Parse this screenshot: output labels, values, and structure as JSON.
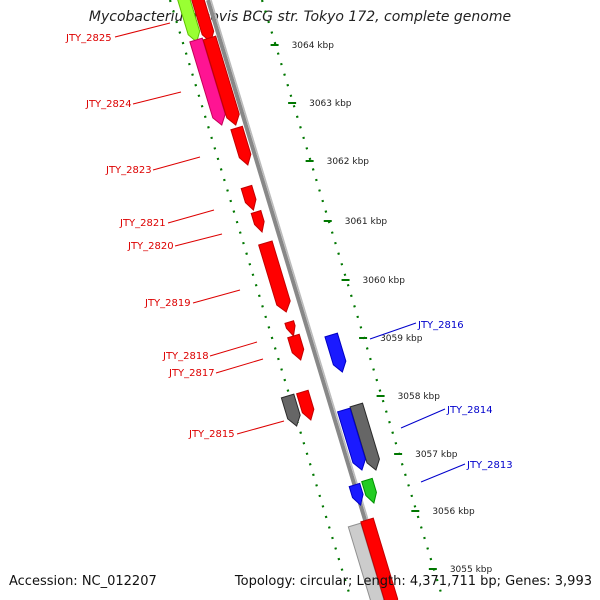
{
  "title": "Mycobacterium bovis BCG str. Tokyo 172, complete genome",
  "footer": {
    "accession": "Accession: NC_012207",
    "summary": "Topology: circular; Length: 4,371,711 bp; Genes: 3,993"
  },
  "colors": {
    "gene_red": "#ff0000",
    "gene_blue": "#1a1aff",
    "gene_green": "#22cc22",
    "gene_pink": "#ff1493",
    "gene_lime": "#99ff33",
    "gene_grey": "#666666",
    "gene_lightgrey": "#cccccc",
    "backbone": "#888888",
    "tick_green": "#007700",
    "label_red": "#dd0000",
    "label_blue": "#0000cc"
  },
  "ticks": [
    "3064 kbp",
    "3063 kbp",
    "3062 kbp",
    "3061 kbp",
    "3060 kbp",
    "3059 kbp",
    "3058 kbp",
    "3057 kbp",
    "3056 kbp",
    "3055 kbp"
  ],
  "gene_labels": [
    {
      "text": "JTY_2825",
      "color": "red"
    },
    {
      "text": "JTY_2824",
      "color": "red"
    },
    {
      "text": "JTY_2823",
      "color": "red"
    },
    {
      "text": "JTY_2821",
      "color": "red"
    },
    {
      "text": "JTY_2820",
      "color": "red"
    },
    {
      "text": "JTY_2819",
      "color": "red"
    },
    {
      "text": "JTY_2818",
      "color": "red"
    },
    {
      "text": "JTY_2817",
      "color": "red"
    },
    {
      "text": "JTY_2815",
      "color": "red"
    },
    {
      "text": "JTY_2816",
      "color": "blue"
    },
    {
      "text": "JTY_2814",
      "color": "blue"
    },
    {
      "text": "JTY_2813",
      "color": "blue"
    }
  ]
}
